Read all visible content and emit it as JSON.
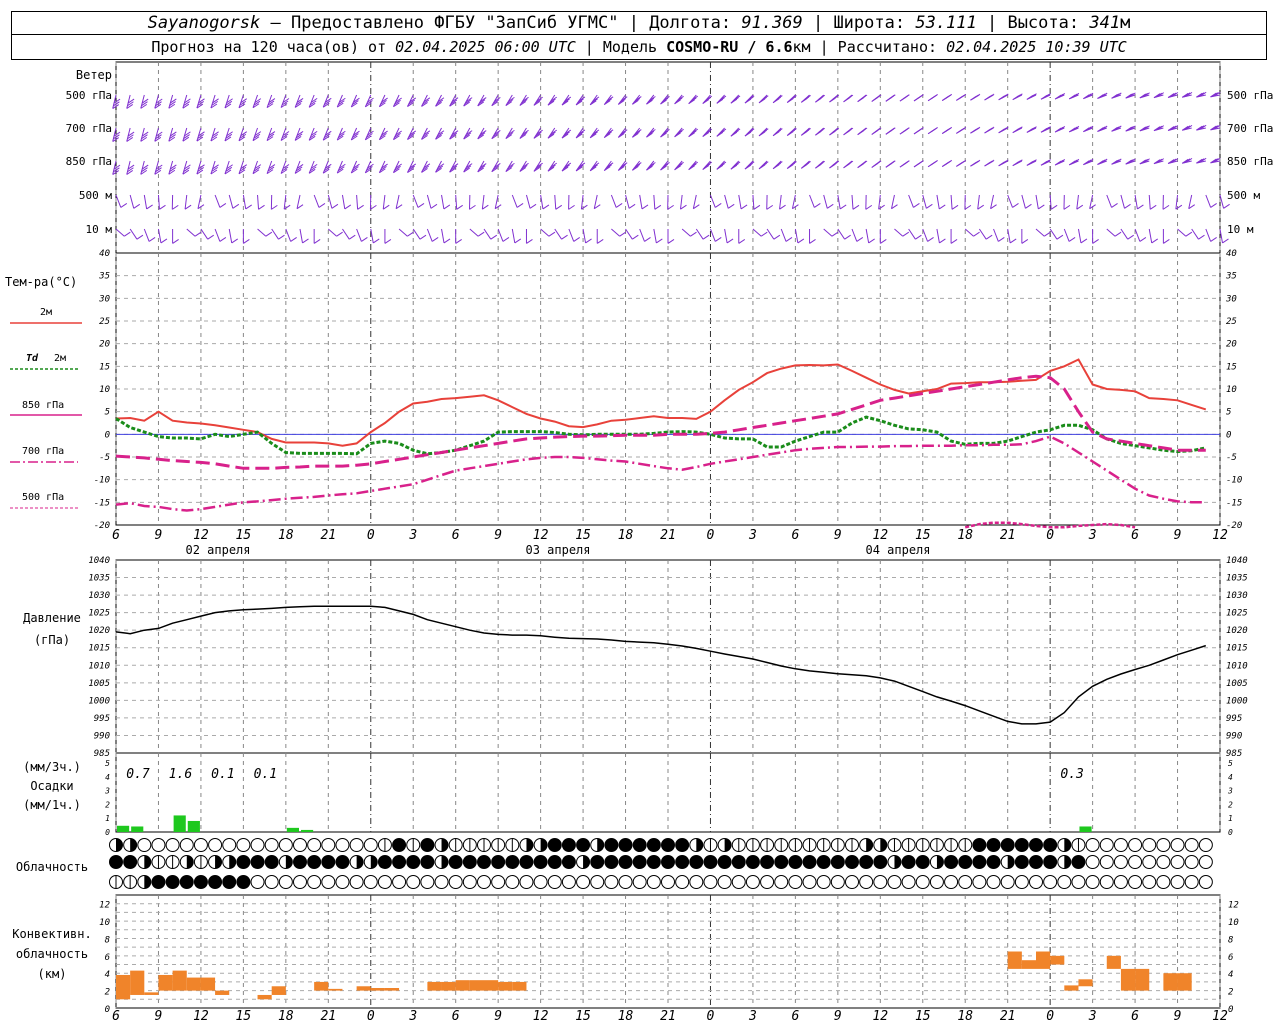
{
  "header": {
    "station": "Sayanogorsk",
    "provider": " — Предоставлено ФГБУ \"ЗапСиб УГМС\" | Долгота: ",
    "lon": "91.369",
    "lat_label": " | Широта: ",
    "lat": "53.111",
    "alt_label": " | Высота: ",
    "alt": "341",
    "alt_unit": "м",
    "forecast_label": "Прогноз на 120 часа(ов) от ",
    "forecast_start": "02.04.2025 06:00 UTC",
    "model_label": "  | Модель ",
    "model": "COSMO-RU / 6.6",
    "model_unit": "км",
    "calc_label": " | Рассчитано: ",
    "calc_time": "02.04.2025 10:39 UTC"
  },
  "panel_labels": {
    "wind": "Ветер",
    "levels": [
      "500 гПа",
      "700 гПа",
      "850 гПа",
      "500 м",
      "10  м"
    ],
    "temp": "Тем-ра(°C)",
    "t2m": "2м",
    "td": "Td",
    "td2": "2м",
    "t850": "850 гПа",
    "t700": "700 гПа",
    "t500": "500 гПа",
    "pressure": "Давление",
    "pressure_unit": "(гПа)",
    "precip_3h": "(мм/3ч.)",
    "precip": "Осадки",
    "precip_1h": "(мм/1ч.)",
    "cloud": "Облачность",
    "conv1": "Конвективн.",
    "conv2": "облачность",
    "conv3": "(км)"
  },
  "colors": {
    "t2m": "#e8413a",
    "td": "#1a8c1a",
    "t850": "#d8218b",
    "t700": "#d8218b",
    "t500": "#d8218b",
    "wind": "#8030d0",
    "precip": "#1ec81e",
    "conv": "#f0842a",
    "pressure": "#000000",
    "zero_line": "#4040e0"
  },
  "chart_data": {
    "type": "meteogram",
    "x_tick_labels": [
      "6",
      "9",
      "12",
      "15",
      "18",
      "21",
      "0",
      "3",
      "6",
      "9",
      "12",
      "15",
      "18",
      "21",
      "0",
      "3",
      "6",
      "9",
      "12",
      "15",
      "18",
      "21",
      "0",
      "3",
      "6",
      "9",
      "12"
    ],
    "day_labels": [
      "02 апреля",
      "03 апреля",
      "04 апреля"
    ],
    "temperature": {
      "ylim": [
        -20,
        40
      ],
      "y_ticks": [
        "40",
        "35",
        "30",
        "25",
        "20",
        "15",
        "10",
        "5",
        "0",
        "-5",
        "-10",
        "-15",
        "-20"
      ],
      "t2m": [
        3.5,
        3.6,
        3.0,
        5.0,
        3.0,
        2.6,
        2.4,
        2.0,
        1.5,
        1.0,
        0.5,
        -1.0,
        -1.8,
        -1.8,
        -1.8,
        -2.0,
        -2.5,
        -2.0,
        0.5,
        2.5,
        5.0,
        6.8,
        7.2,
        7.8,
        8.0,
        8.3,
        8.6,
        7.5,
        6.0,
        4.5,
        3.5,
        2.8,
        1.8,
        1.6,
        2.2,
        3.0,
        3.2,
        3.6,
        4.0,
        3.6,
        3.6,
        3.4,
        5.0,
        7.5,
        9.8,
        11.5,
        13.5,
        14.5,
        15.2,
        15.3,
        15.2,
        15.4,
        14.0,
        12.5,
        11.0,
        9.8,
        9.0,
        9.5,
        10.0,
        11.2,
        11.3,
        11.5,
        11.5,
        11.6,
        11.8,
        12.0,
        14.0,
        15.0,
        16.5,
        11.0,
        10.0,
        9.8,
        9.5,
        8.0,
        7.8,
        7.5,
        6.5,
        5.5
      ],
      "td2m": [
        3.5,
        1.5,
        0.5,
        -0.5,
        -0.8,
        -0.8,
        -1.0,
        0.0,
        -0.5,
        0.0,
        0.5,
        -2.0,
        -4.0,
        -4.2,
        -4.2,
        -4.2,
        -4.2,
        -4.3,
        -2.0,
        -1.5,
        -2.0,
        -3.5,
        -4.3,
        -4.0,
        -3.5,
        -2.5,
        -1.5,
        0.5,
        0.6,
        0.6,
        0.6,
        0.4,
        0.0,
        -0.1,
        0.0,
        0.0,
        0.0,
        0.0,
        0.2,
        0.5,
        0.6,
        0.5,
        0.0,
        -0.8,
        -1.0,
        -1.0,
        -2.8,
        -2.8,
        -1.5,
        -0.5,
        0.5,
        0.5,
        2.5,
        3.8,
        3.0,
        2.0,
        1.2,
        1.0,
        0.5,
        -1.5,
        -2.2,
        -2.0,
        -2.0,
        -1.5,
        -0.5,
        0.5,
        1.0,
        2.0,
        2.0,
        1.0,
        -1.0,
        -2.0,
        -2.5,
        -3.0,
        -3.5,
        -3.8,
        -3.6,
        -3.0
      ],
      "t850": [
        -4.8,
        -5.0,
        -5.2,
        -5.5,
        -5.8,
        -6.0,
        -6.2,
        -6.5,
        -7.0,
        -7.5,
        -7.5,
        -7.5,
        -7.3,
        -7.2,
        -7.0,
        -7.0,
        -7.0,
        -6.8,
        -6.5,
        -6.0,
        -5.5,
        -5.0,
        -4.5,
        -4.0,
        -3.5,
        -3.0,
        -2.5,
        -2.0,
        -1.5,
        -1.0,
        -0.8,
        -0.6,
        -0.5,
        -0.4,
        -0.4,
        -0.3,
        -0.2,
        -0.2,
        -0.2,
        0.0,
        0.0,
        0.0,
        0.2,
        0.5,
        1.0,
        1.5,
        2.0,
        2.5,
        3.0,
        3.5,
        4.0,
        4.5,
        5.5,
        6.5,
        7.5,
        8.0,
        8.5,
        9.0,
        9.5,
        10.0,
        10.5,
        11.0,
        11.5,
        12.0,
        12.5,
        12.8,
        12.5,
        10.0,
        5.0,
        0.5,
        -1.0,
        -1.5,
        -2.0,
        -2.5,
        -3.0,
        -3.5,
        -3.5,
        -3.5
      ],
      "t700": [
        -15.5,
        -15.2,
        -15.8,
        -16.0,
        -16.5,
        -16.8,
        -16.5,
        -16.0,
        -15.5,
        -15.0,
        -14.8,
        -14.5,
        -14.2,
        -14.0,
        -13.8,
        -13.5,
        -13.2,
        -13.0,
        -12.5,
        -12.0,
        -11.5,
        -11.0,
        -10.0,
        -9.0,
        -8.0,
        -7.5,
        -7.0,
        -6.5,
        -6.0,
        -5.5,
        -5.2,
        -5.0,
        -5.0,
        -5.2,
        -5.5,
        -5.8,
        -6.0,
        -6.5,
        -7.0,
        -7.5,
        -7.8,
        -7.2,
        -6.5,
        -6.0,
        -5.5,
        -5.0,
        -4.5,
        -4.0,
        -3.5,
        -3.2,
        -3.0,
        -2.8,
        -2.8,
        -2.7,
        -2.7,
        -2.6,
        -2.6,
        -2.5,
        -2.5,
        -2.5,
        -2.4,
        -2.4,
        -2.3,
        -2.3,
        -2.2,
        -1.5,
        -0.5,
        -2.0,
        -4.0,
        -6.0,
        -8.0,
        -10.0,
        -12.0,
        -13.5,
        -14.2,
        -14.8,
        -15.0,
        -15.0
      ],
      "t500_x_range": [
        60,
        72
      ],
      "t500": [
        -20.5,
        -19.8,
        -19.5,
        -19.5,
        -19.8,
        -20.2,
        -20.5,
        -20.5,
        -20.2,
        -20.0,
        -19.8,
        -20.0,
        -20.5
      ]
    },
    "pressure": {
      "ylim": [
        985,
        1040
      ],
      "y_ticks": [
        "1040",
        "1035",
        "1030",
        "1025",
        "1020",
        "1015",
        "1010",
        "1005",
        "1000",
        "995",
        "990",
        "985"
      ],
      "values": [
        1019.5,
        1019.0,
        1020.0,
        1020.5,
        1022.0,
        1023.0,
        1024.0,
        1025.0,
        1025.5,
        1025.8,
        1026.0,
        1026.2,
        1026.5,
        1026.7,
        1026.8,
        1026.8,
        1026.8,
        1026.8,
        1026.8,
        1026.5,
        1025.5,
        1024.5,
        1023.0,
        1022.0,
        1021.0,
        1020.0,
        1019.2,
        1018.8,
        1018.6,
        1018.6,
        1018.4,
        1018.0,
        1017.7,
        1017.6,
        1017.5,
        1017.2,
        1016.8,
        1016.6,
        1016.4,
        1016.0,
        1015.5,
        1014.8,
        1014.0,
        1013.2,
        1012.5,
        1011.8,
        1010.8,
        1009.8,
        1009.0,
        1008.4,
        1008.0,
        1007.6,
        1007.3,
        1007.0,
        1006.4,
        1005.5,
        1004.0,
        1002.5,
        1001.0,
        999.8,
        998.5,
        997.0,
        995.5,
        994.0,
        993.3,
        993.3,
        993.8,
        996.5,
        1001.0,
        1004.0,
        1006.0,
        1007.5,
        1008.8,
        1010.0,
        1011.5,
        1013.0,
        1014.3,
        1015.6
      ]
    },
    "precip": {
      "ylim": [
        0,
        5
      ],
      "y_ticks": [
        "5",
        "4",
        "3",
        "2",
        "1",
        "0"
      ],
      "hourly": [
        0.45,
        0.4,
        0,
        0,
        1.2,
        0.8,
        0,
        0,
        0,
        0,
        0,
        0,
        0.3,
        0.15,
        0,
        0,
        0,
        0,
        0,
        0,
        0,
        0,
        0,
        0,
        0,
        0,
        0,
        0,
        0,
        0,
        0,
        0,
        0,
        0,
        0,
        0,
        0,
        0,
        0,
        0,
        0,
        0,
        0,
        0,
        0,
        0,
        0,
        0,
        0,
        0,
        0,
        0,
        0,
        0,
        0,
        0,
        0,
        0,
        0,
        0,
        0,
        0,
        0,
        0,
        0,
        0,
        0,
        0,
        0.4,
        0,
        0,
        0,
        0,
        0,
        0,
        0,
        0,
        0
      ],
      "totals_3h": [
        "0.7",
        "1.6",
        "0.1",
        "0.1",
        "0.3"
      ],
      "total_positions": [
        0,
        3,
        6,
        9,
        66
      ]
    },
    "cloud_cover": {
      "rows": [
        [
          2,
          2,
          0,
          0,
          0,
          0,
          0,
          0,
          0,
          0,
          0,
          0,
          0,
          0,
          0,
          0,
          0,
          0,
          0,
          1,
          3,
          1,
          3,
          2,
          1,
          1,
          1,
          1,
          1,
          2,
          2,
          3,
          3,
          3,
          2,
          3,
          3,
          3,
          3,
          3,
          3,
          2,
          1,
          2,
          1,
          1,
          1,
          1,
          1,
          1,
          1,
          1,
          1,
          2,
          2,
          1,
          1,
          1,
          1,
          1,
          1,
          3,
          3,
          3,
          3,
          3,
          3,
          2,
          1,
          0,
          0,
          0,
          0,
          0,
          0,
          0,
          0,
          0
        ],
        [
          3,
          3,
          2,
          1,
          1,
          2,
          1,
          2,
          2,
          3,
          3,
          3,
          2,
          3,
          3,
          3,
          3,
          2,
          2,
          3,
          3,
          3,
          3,
          2,
          3,
          3,
          3,
          3,
          3,
          3,
          3,
          3,
          3,
          2,
          3,
          3,
          3,
          3,
          3,
          3,
          3,
          3,
          3,
          3,
          3,
          3,
          3,
          3,
          3,
          3,
          3,
          3,
          3,
          3,
          3,
          2,
          3,
          3,
          2,
          3,
          3,
          3,
          3,
          2,
          3,
          3,
          3,
          2,
          3,
          0,
          0,
          0,
          0,
          0,
          0,
          0,
          0,
          0
        ],
        [
          1,
          1,
          2,
          3,
          3,
          3,
          3,
          3,
          3,
          3,
          0,
          0,
          0,
          0,
          0,
          0,
          0,
          0,
          0,
          0,
          0,
          0,
          0,
          0,
          0,
          0,
          0,
          0,
          0,
          0,
          0,
          0,
          0,
          0,
          0,
          0,
          0,
          0,
          0,
          0,
          0,
          0,
          0,
          0,
          0,
          0,
          0,
          0,
          0,
          0,
          0,
          0,
          0,
          0,
          0,
          0,
          0,
          0,
          0,
          0,
          0,
          0,
          0,
          0,
          0,
          0,
          0,
          0,
          0,
          0,
          0,
          0,
          0,
          0,
          0,
          0,
          0,
          0
        ]
      ]
    },
    "convective": {
      "ylim": [
        0,
        13
      ],
      "y_ticks": [
        "12",
        "10",
        "8",
        "6",
        "4",
        "2",
        "0"
      ],
      "bars": [
        [
          1,
          3.8
        ],
        [
          1.5,
          4.3
        ],
        [
          1.5,
          1.8
        ],
        [
          2,
          3.8
        ],
        [
          2,
          4.3
        ],
        [
          2,
          3.5
        ],
        [
          2,
          3.5
        ],
        [
          1.5,
          2
        ],
        [
          1.5,
          1.5
        ],
        [
          1,
          1
        ],
        [
          1,
          1.5
        ],
        [
          1.5,
          2.5
        ],
        [
          0,
          0
        ],
        [
          0,
          0
        ],
        [
          2,
          3
        ],
        [
          2,
          2.2
        ],
        [
          0,
          0
        ],
        [
          2,
          2.5
        ],
        [
          2,
          2.3
        ],
        [
          2,
          2.3
        ],
        [
          0,
          0
        ],
        [
          0,
          0
        ],
        [
          2,
          3
        ],
        [
          2,
          3
        ],
        [
          2,
          3.2
        ],
        [
          2,
          3.2
        ],
        [
          2,
          3.2
        ],
        [
          2,
          3
        ],
        [
          2,
          3
        ],
        [
          0,
          0
        ],
        [
          0,
          0
        ],
        [
          0,
          0
        ],
        [
          0,
          0
        ],
        [
          0,
          0
        ],
        [
          0,
          0
        ],
        [
          0,
          0
        ],
        [
          0,
          0
        ],
        [
          0,
          0
        ],
        [
          0,
          0
        ],
        [
          0,
          0
        ],
        [
          0,
          0
        ],
        [
          0,
          0
        ],
        [
          0,
          0
        ],
        [
          0,
          0
        ],
        [
          0,
          0
        ],
        [
          0,
          0
        ],
        [
          0,
          0
        ],
        [
          0,
          0
        ],
        [
          0,
          0
        ],
        [
          0,
          0
        ],
        [
          0,
          0
        ],
        [
          0,
          0
        ],
        [
          0,
          0
        ],
        [
          0,
          0
        ],
        [
          0,
          0
        ],
        [
          0,
          0
        ],
        [
          0,
          0
        ],
        [
          0,
          0
        ],
        [
          0,
          0
        ],
        [
          0,
          0
        ],
        [
          0,
          0
        ],
        [
          0,
          0
        ],
        [
          0,
          0
        ],
        [
          4.5,
          6.5
        ],
        [
          4.5,
          5.5
        ],
        [
          4.5,
          6.5
        ],
        [
          5,
          6
        ],
        [
          2,
          2.6
        ],
        [
          2.5,
          3.3
        ],
        [
          2,
          2
        ],
        [
          4.5,
          6
        ],
        [
          2,
          4.5
        ],
        [
          2,
          4.5
        ],
        [
          0,
          0
        ],
        [
          2,
          4
        ],
        [
          2,
          4
        ],
        [
          0,
          0
        ],
        [
          0,
          0
        ]
      ]
    },
    "wind_levels": [
      "500 гПа",
      "700 гПа",
      "850 гПа",
      "500 м",
      "10 м"
    ]
  }
}
